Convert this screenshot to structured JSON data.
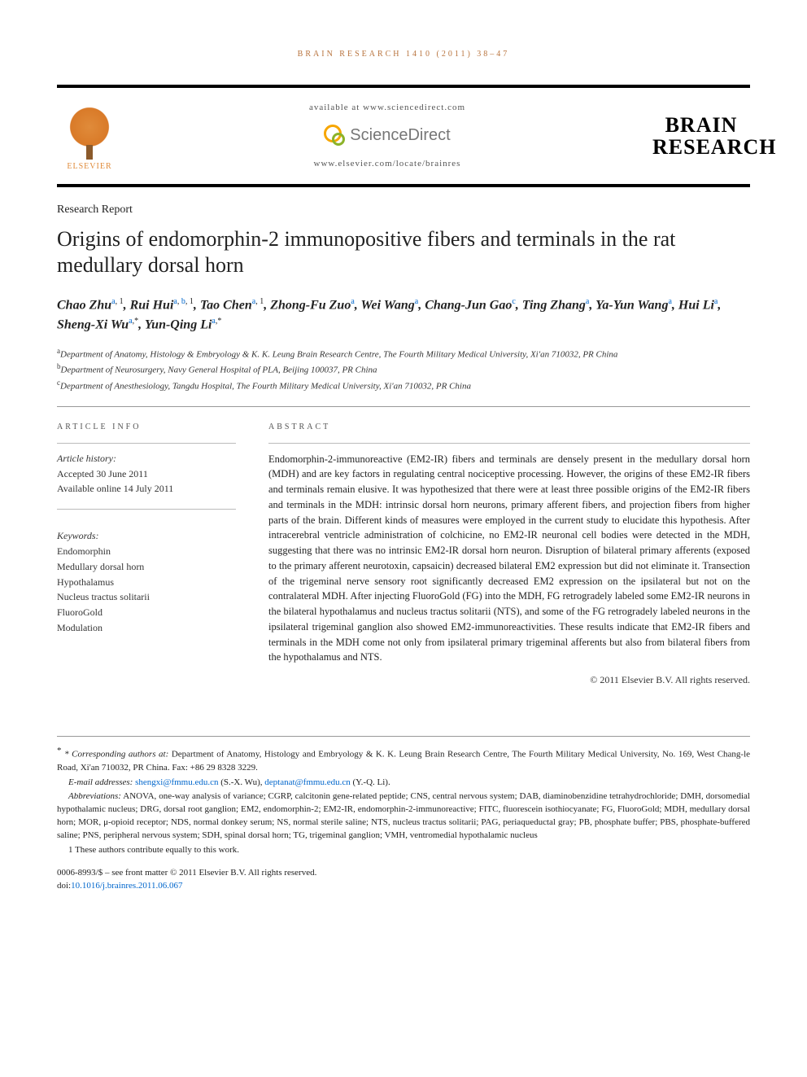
{
  "running_head": "BRAIN RESEARCH 1410 (2011) 38–47",
  "header": {
    "available_text": "available at www.sciencedirect.com",
    "sd_name": "ScienceDirect",
    "locate_url": "www.elsevier.com/locate/brainres",
    "elsevier_label": "ELSEVIER",
    "journal_name_line1": "BRAIN",
    "journal_name_line2": "RESEARCH"
  },
  "article": {
    "section": "Research Report",
    "title": "Origins of endomorphin-2 immunopositive fibers and terminals in the rat medullary dorsal horn",
    "authors_html": "Chao Zhu|a, 1|, Rui Hui|a, b, 1|, Tao Chen|a, 1|, Zhong-Fu Zuo|a|, Wei Wang|a|, Chang-Jun Gao|c|, Ting Zhang|a|, Ya-Yun Wang|a|, Hui Li|a|, Sheng-Xi Wu|a,*|, Yun-Qing Li|a,*|"
  },
  "authors": [
    {
      "name": "Chao Zhu",
      "aff": "a, 1"
    },
    {
      "name": "Rui Hui",
      "aff": "a, b, 1"
    },
    {
      "name": "Tao Chen",
      "aff": "a, 1"
    },
    {
      "name": "Zhong-Fu Zuo",
      "aff": "a"
    },
    {
      "name": "Wei Wang",
      "aff": "a"
    },
    {
      "name": "Chang-Jun Gao",
      "aff": "c"
    },
    {
      "name": "Ting Zhang",
      "aff": "a"
    },
    {
      "name": "Ya-Yun Wang",
      "aff": "a"
    },
    {
      "name": "Hui Li",
      "aff": "a"
    },
    {
      "name": "Sheng-Xi Wu",
      "aff": "a,*"
    },
    {
      "name": "Yun-Qing Li",
      "aff": "a,*"
    }
  ],
  "affiliations": {
    "a": "Department of Anatomy, Histology & Embryology & K. K. Leung Brain Research Centre, The Fourth Military Medical University, Xi'an 710032, PR China",
    "b": "Department of Neurosurgery, Navy General Hospital of PLA, Beijing 100037, PR China",
    "c": "Department of Anesthesiology, Tangdu Hospital, The Fourth Military Medical University, Xi'an 710032, PR China"
  },
  "info": {
    "head": "ARTICLE INFO",
    "history_label": "Article history:",
    "accepted": "Accepted 30 June 2011",
    "online": "Available online 14 July 2011",
    "keywords_label": "Keywords:",
    "keywords": [
      "Endomorphin",
      "Medullary dorsal horn",
      "Hypothalamus",
      "Nucleus tractus solitarii",
      "FluoroGold",
      "Modulation"
    ]
  },
  "abstract": {
    "head": "ABSTRACT",
    "text": "Endomorphin-2-immunoreactive (EM2-IR) fibers and terminals are densely present in the medullary dorsal horn (MDH) and are key factors in regulating central nociceptive processing. However, the origins of these EM2-IR fibers and terminals remain elusive. It was hypothesized that there were at least three possible origins of the EM2-IR fibers and terminals in the MDH: intrinsic dorsal horn neurons, primary afferent fibers, and projection fibers from higher parts of the brain. Different kinds of measures were employed in the current study to elucidate this hypothesis. After intracerebral ventricle administration of colchicine, no EM2-IR neuronal cell bodies were detected in the MDH, suggesting that there was no intrinsic EM2-IR dorsal horn neuron. Disruption of bilateral primary afferents (exposed to the primary afferent neurotoxin, capsaicin) decreased bilateral EM2 expression but did not eliminate it. Transection of the trigeminal nerve sensory root significantly decreased EM2 expression on the ipsilateral but not on the contralateral MDH. After injecting FluoroGold (FG) into the MDH, FG retrogradely labeled some EM2-IR neurons in the bilateral hypothalamus and nucleus tractus solitarii (NTS), and some of the FG retrogradely labeled neurons in the ipsilateral trigeminal ganglion also showed EM2-immunoreactivities. These results indicate that EM2-IR fibers and terminals in the MDH come not only from ipsilateral primary trigeminal afferents but also from bilateral fibers from the hypothalamus and NTS.",
    "copyright": "© 2011 Elsevier B.V. All rights reserved."
  },
  "footer": {
    "corresponding_label": "* Corresponding authors at:",
    "corresponding_text": " Department of Anatomy, Histology and Embryology & K. K. Leung Brain Research Centre, The Fourth Military Medical University, No. 169, West Chang-le Road, Xi'an 710032, PR China. Fax: +86 29 8328 3229.",
    "email_label": "E-mail addresses: ",
    "email1": "shengxi@fmmu.edu.cn",
    "email1_who": " (S.-X. Wu), ",
    "email2": "deptanat@fmmu.edu.cn",
    "email2_who": " (Y.-Q. Li).",
    "abbrev_label": "Abbreviations:",
    "abbrev_text": " ANOVA, one-way analysis of variance; CGRP, calcitonin gene-related peptide; CNS, central nervous system; DAB, diaminobenzidine tetrahydrochloride; DMH, dorsomedial hypothalamic nucleus; DRG, dorsal root ganglion; EM2, endomorphin-2; EM2-IR, endomorphin-2-immunoreactive; FITC, fluorescein isothiocyanate; FG, FluoroGold; MDH, medullary dorsal horn; MOR, μ-opioid receptor; NDS, normal donkey serum; NS, normal sterile saline; NTS, nucleus tractus solitarii; PAG, periaqueductal gray; PB, phosphate buffer; PBS, phosphate-buffered saline; PNS, peripheral nervous system; SDH, spinal dorsal horn; TG, trigeminal ganglion; VMH, ventromedial hypothalamic nucleus",
    "equal_label": "1",
    "equal_text": " These authors contribute equally to this work.",
    "issn_line": "0006-8993/$ – see front matter © 2011 Elsevier B.V. All rights reserved.",
    "doi_label": "doi:",
    "doi": "10.1016/j.brainres.2011.06.067"
  },
  "colors": {
    "link": "#0066cc",
    "accent_orange": "#e08b3a",
    "text": "#333333",
    "rule": "#999999"
  }
}
